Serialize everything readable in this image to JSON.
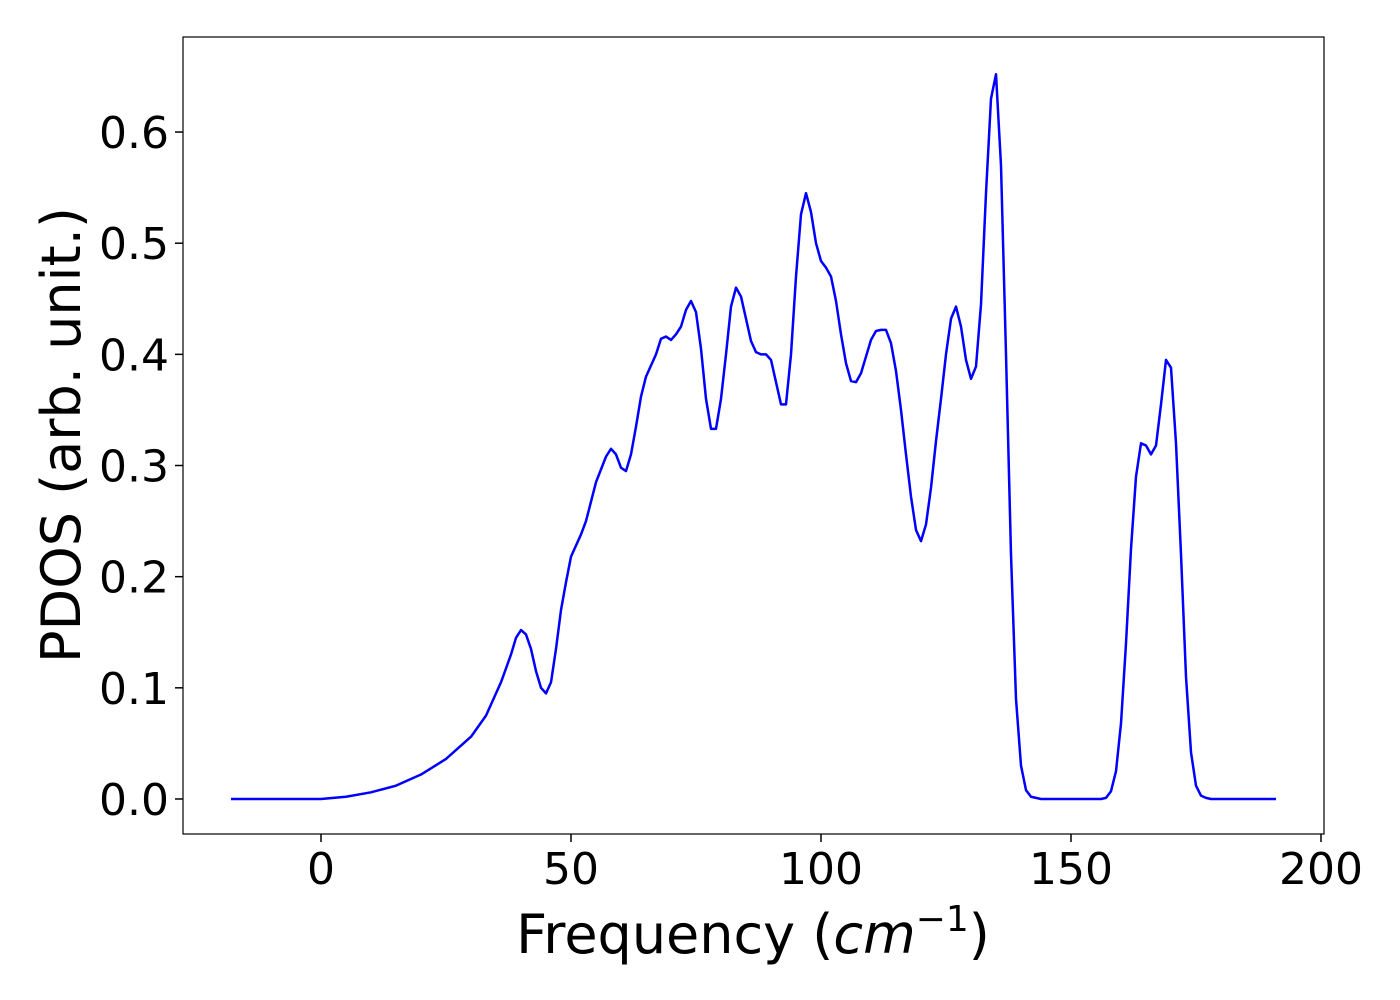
{
  "chart_data": {
    "type": "line",
    "xlabel": [
      "Frequency (",
      "cm",
      "−1",
      ")"
    ],
    "ylabel": "PDOS (arb. unit.)",
    "xlim": [
      -27.6,
      200.6
    ],
    "ylim": [
      -0.0315,
      0.6855
    ],
    "xticks": [
      0,
      50,
      100,
      150,
      200
    ],
    "yticks": [
      {
        "value": 0,
        "label": "0.0"
      },
      0.1,
      0.2,
      0.3,
      0.4,
      0.5,
      0.6
    ],
    "x": [
      -18,
      -10,
      0,
      5,
      10,
      15,
      20,
      25,
      30,
      33,
      36,
      38,
      39,
      40,
      41,
      42,
      43,
      44,
      45,
      46,
      47,
      48,
      49,
      50,
      52,
      53,
      55,
      57,
      58,
      59,
      60,
      61,
      62,
      63,
      64,
      65,
      67,
      68,
      69,
      70,
      71,
      72,
      73,
      74,
      75,
      76,
      77,
      78,
      79,
      80,
      81,
      82,
      83,
      84,
      85,
      86,
      87,
      88,
      89,
      90,
      91,
      92,
      93,
      94,
      95,
      96,
      97,
      98,
      99,
      100,
      101,
      102,
      103,
      104,
      105,
      106,
      107,
      108,
      109,
      110,
      111,
      112,
      113,
      114,
      115,
      116,
      117,
      118,
      119,
      120,
      121,
      122,
      123,
      124,
      125,
      126,
      127,
      128,
      129,
      130,
      131,
      132,
      133,
      134,
      135,
      136,
      137,
      138,
      139,
      140,
      141,
      142,
      143,
      144,
      150,
      156,
      157,
      158,
      159,
      160,
      161,
      162,
      163,
      164,
      165,
      166,
      167,
      168,
      169,
      170,
      171,
      172,
      173,
      174,
      175,
      176,
      177,
      178,
      185,
      191
    ],
    "series": [
      {
        "color": "#0000ff",
        "values": [
          0,
          0,
          0,
          0.002,
          0.006,
          0.012,
          0.022,
          0.036,
          0.056,
          0.075,
          0.105,
          0.13,
          0.145,
          0.152,
          0.148,
          0.135,
          0.115,
          0.1,
          0.095,
          0.105,
          0.135,
          0.17,
          0.195,
          0.218,
          0.238,
          0.25,
          0.285,
          0.308,
          0.315,
          0.31,
          0.298,
          0.295,
          0.31,
          0.335,
          0.362,
          0.38,
          0.4,
          0.414,
          0.416,
          0.413,
          0.418,
          0.425,
          0.44,
          0.448,
          0.438,
          0.405,
          0.36,
          0.333,
          0.333,
          0.36,
          0.4,
          0.443,
          0.46,
          0.452,
          0.432,
          0.412,
          0.402,
          0.4,
          0.4,
          0.395,
          0.375,
          0.355,
          0.355,
          0.4,
          0.47,
          0.526,
          0.545,
          0.528,
          0.5,
          0.484,
          0.478,
          0.47,
          0.448,
          0.418,
          0.392,
          0.376,
          0.375,
          0.383,
          0.398,
          0.413,
          0.421,
          0.422,
          0.422,
          0.41,
          0.385,
          0.35,
          0.31,
          0.272,
          0.242,
          0.232,
          0.247,
          0.28,
          0.322,
          0.36,
          0.4,
          0.432,
          0.443,
          0.425,
          0.395,
          0.378,
          0.389,
          0.445,
          0.545,
          0.63,
          0.652,
          0.57,
          0.4,
          0.22,
          0.09,
          0.03,
          0.008,
          0.002,
          0.001,
          0,
          0,
          0,
          0.001,
          0.007,
          0.025,
          0.068,
          0.14,
          0.225,
          0.29,
          0.32,
          0.318,
          0.31,
          0.318,
          0.355,
          0.395,
          0.388,
          0.32,
          0.22,
          0.11,
          0.042,
          0.012,
          0.003,
          0.001,
          0,
          0,
          0
        ]
      }
    ]
  }
}
